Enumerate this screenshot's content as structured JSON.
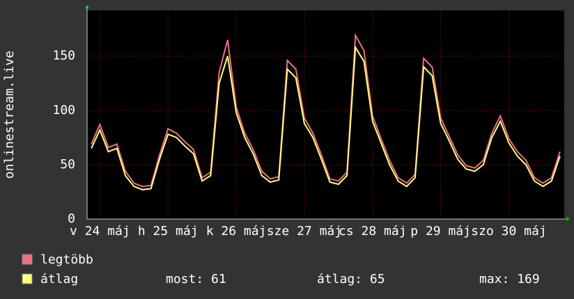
{
  "chart_data": {
    "type": "line",
    "y_label": "onlinestream.live",
    "categories": [
      null,
      "v 24 máj",
      null,
      null,
      null,
      null,
      null,
      null,
      null,
      "h 25 máj",
      null,
      null,
      null,
      null,
      null,
      null,
      null,
      "k 26 máj",
      null,
      null,
      null,
      null,
      null,
      null,
      null,
      "sze 27 máj",
      null,
      null,
      null,
      null,
      null,
      null,
      null,
      "cs 28 máj",
      null,
      null,
      null,
      null,
      null,
      null,
      null,
      "p 29 máj",
      null,
      null,
      null,
      null,
      null,
      null,
      null,
      "szo 30 máj",
      null,
      null,
      null,
      null,
      null,
      null
    ],
    "series": [
      {
        "name": "legtöbb",
        "color": "#f07080",
        "values": [
          69,
          87,
          66,
          69,
          44,
          33,
          30,
          31,
          59,
          83,
          79,
          71,
          64,
          38,
          43,
          135,
          165,
          103,
          79,
          64,
          44,
          37,
          39,
          146,
          138,
          93,
          79,
          59,
          37,
          35,
          43,
          169,
          155,
          95,
          74,
          54,
          38,
          33,
          41,
          148,
          140,
          93,
          76,
          59,
          49,
          47,
          54,
          79,
          95,
          74,
          62,
          54,
          38,
          33,
          38,
          62
        ]
      },
      {
        "name": "átlag",
        "color": "#ffff80",
        "values": [
          65,
          82,
          62,
          65,
          40,
          30,
          27,
          28,
          55,
          78,
          75,
          67,
          60,
          35,
          40,
          125,
          150,
          98,
          75,
          60,
          40,
          34,
          36,
          138,
          130,
          88,
          75,
          55,
          34,
          32,
          40,
          158,
          145,
          90,
          70,
          50,
          35,
          30,
          38,
          140,
          132,
          88,
          72,
          55,
          46,
          44,
          50,
          75,
          90,
          70,
          58,
          50,
          35,
          30,
          35,
          58
        ]
      }
    ],
    "ylim": [
      0,
      192
    ],
    "yticks": [
      0,
      50,
      100,
      150
    ],
    "grid": true,
    "stats": [
      {
        "label": "most:",
        "value": 61
      },
      {
        "label": "átlag:",
        "value": 65
      },
      {
        "label": "max:",
        "value": 169
      }
    ]
  }
}
